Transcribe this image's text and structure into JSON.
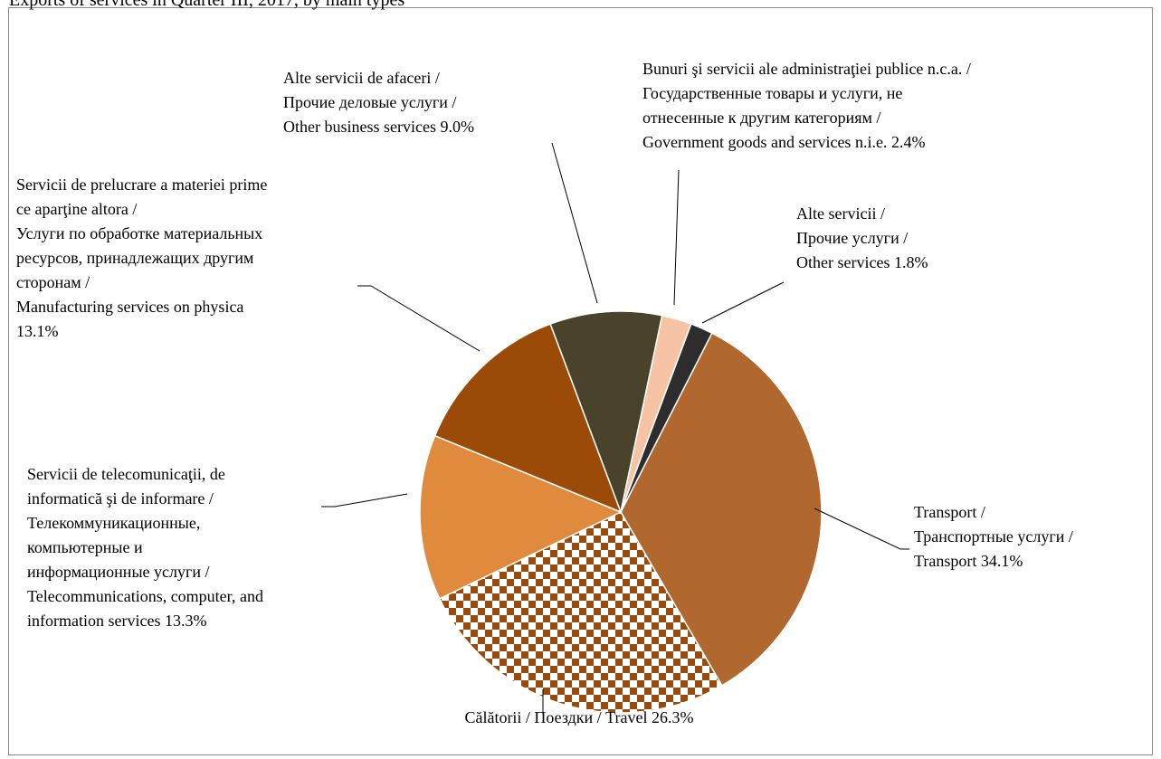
{
  "chart_data": {
    "type": "pie",
    "title": "Exports of services in Quarter III, 2017, by main types",
    "categories": [
      [
        "Transport /",
        "Транспортные услуги /",
        "Transport"
      ],
      [
        "Călătorii / Поездки / Travel"
      ],
      [
        "Servicii de telecomunicaţii, de",
        "informatică şi de informare /",
        "Телекоммуникационные,",
        "компьютерные и",
        "информационные услуги /",
        "Telecommunications, computer, and",
        "information services"
      ],
      [
        "Servicii de prelucrare a materiei prime",
        "ce aparţine altora /",
        "Услуги по обработке материальных",
        "ресурсов, принадлежащих другим",
        "сторонам /",
        "Manufacturing services on physica"
      ],
      [
        " Alte servicii de afaceri /",
        "Прочие деловые услуги /",
        "Other business services"
      ],
      [
        "Bunuri şi servicii ale administraţiei publice n.c.a. /",
        "Государственные товары и услуги, не",
        "отнесенные к другим категориям /",
        "Government goods and services n.i.e."
      ],
      [
        "Alte servicii /",
        "Прочие услуги /",
        "Other services "
      ]
    ],
    "values": [
      34.1,
      26.3,
      13.3,
      13.1,
      9.0,
      2.4,
      1.8
    ],
    "value_labels": [
      "34.1%",
      "26.3%",
      "13.3%",
      "13.1%",
      "9.0%",
      "2.4%",
      "1.8%"
    ],
    "colors": [
      "#b0682f",
      "#9a4a0a",
      "#e08a3e",
      "#9b4a07",
      "#4a432b",
      "#f6c3a4",
      "#2d2d2d"
    ],
    "patterns": [
      null,
      "checkerboard",
      null,
      null,
      null,
      null,
      null
    ]
  }
}
